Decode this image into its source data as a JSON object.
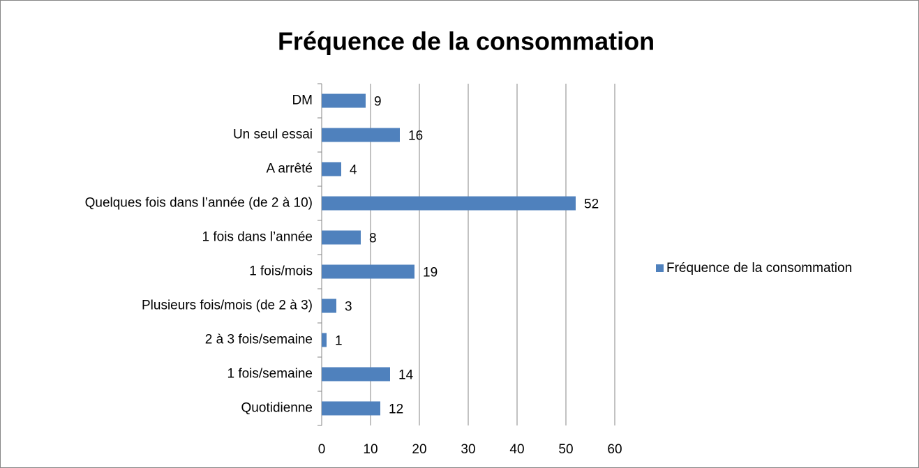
{
  "chart_data": {
    "type": "hbar",
    "title": "Fréquence de la consommation",
    "categories": [
      "Quotidienne",
      "1 fois/semaine",
      "2 à 3 fois/semaine",
      "Plusieurs fois/mois (de 2 à 3)",
      "1 fois/mois",
      "1 fois dans l’année",
      "Quelques fois dans l’année (de 2 à 10)",
      "A arrêté",
      "Un seul essai",
      "DM"
    ],
    "series": [
      {
        "name": "Fréquence de la consommation",
        "color": "#4f81bd",
        "values": [
          12,
          14,
          1,
          3,
          19,
          8,
          52,
          4,
          16,
          9
        ]
      }
    ],
    "xlim": [
      0,
      60
    ],
    "xticks": [
      0,
      10,
      20,
      30,
      40,
      50,
      60
    ],
    "grid": true,
    "legend": "right"
  }
}
